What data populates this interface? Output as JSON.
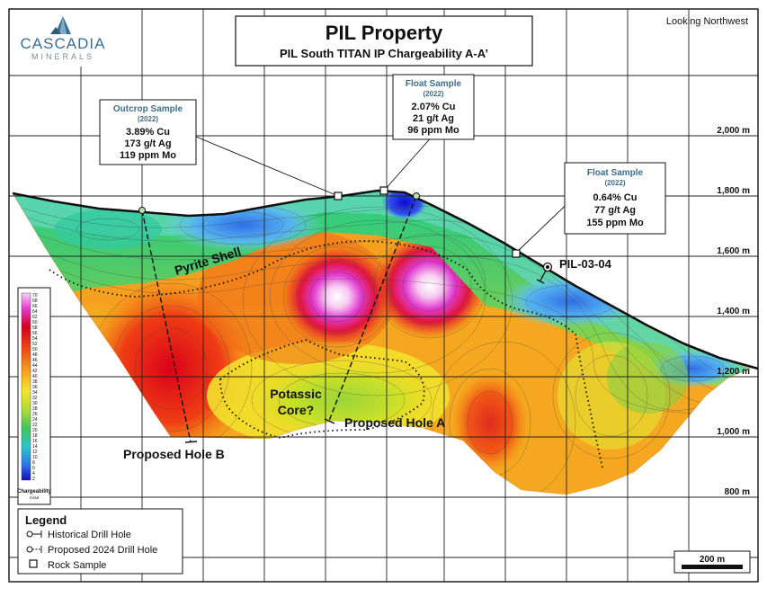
{
  "header": {
    "logo_line1": "CASCADIA",
    "logo_line2": "MINERALS",
    "title": "PIL Property",
    "subtitle": "PIL South TITAN IP Chargeability A-A’",
    "orientation": "Looking Northwest"
  },
  "elevations": [
    "2,000 m",
    "1,800 m",
    "1,600 m",
    "1,400 m",
    "1,200 m",
    "1,000 m",
    "800 m"
  ],
  "samples": [
    {
      "title": "Outcrop Sample",
      "year": "(2022)",
      "cu": "3.89% Cu",
      "ag": "173 g/t Ag",
      "mo": "119 ppm Mo"
    },
    {
      "title": "Float Sample",
      "year": "(2022)",
      "cu": "2.07% Cu",
      "ag": "21 g/t Ag",
      "mo": "96 ppm Mo"
    },
    {
      "title": "Float Sample",
      "year": "(2022)",
      "cu": "0.64% Cu",
      "ag": "77 g/t Ag",
      "mo": "155 ppm Mo"
    }
  ],
  "labels": {
    "pyrite_shell": "Pyrite Shell",
    "potassic_1": "Potassic",
    "potassic_2": "Core?",
    "hole_a": "Proposed Hole A",
    "hole_b": "Proposed Hole B",
    "drill_hole": "PIL-03-04"
  },
  "colorbar": {
    "ticks": [
      "70",
      "68",
      "66",
      "64",
      "62",
      "60",
      "58",
      "56",
      "54",
      "52",
      "50",
      "48",
      "46",
      "44",
      "42",
      "40",
      "38",
      "36",
      "34",
      "32",
      "30",
      "28",
      "26",
      "24",
      "22",
      "20",
      "18",
      "16",
      "14",
      "12",
      "10",
      "8",
      "6",
      "4",
      "2"
    ],
    "label": "Chargeability",
    "unit": "mrad"
  },
  "legend": {
    "title": "Legend",
    "items": [
      "Historical Drill Hole",
      "Proposed 2024 Drill Hole",
      "Rock Sample"
    ]
  },
  "scale_bar": "200 m",
  "colors": {
    "grid": "#222222",
    "topo_line": "#111111",
    "sample_title": "#3f6e87",
    "logo_blue": "#3a6f91",
    "logo_gray": "#7b8a93"
  }
}
